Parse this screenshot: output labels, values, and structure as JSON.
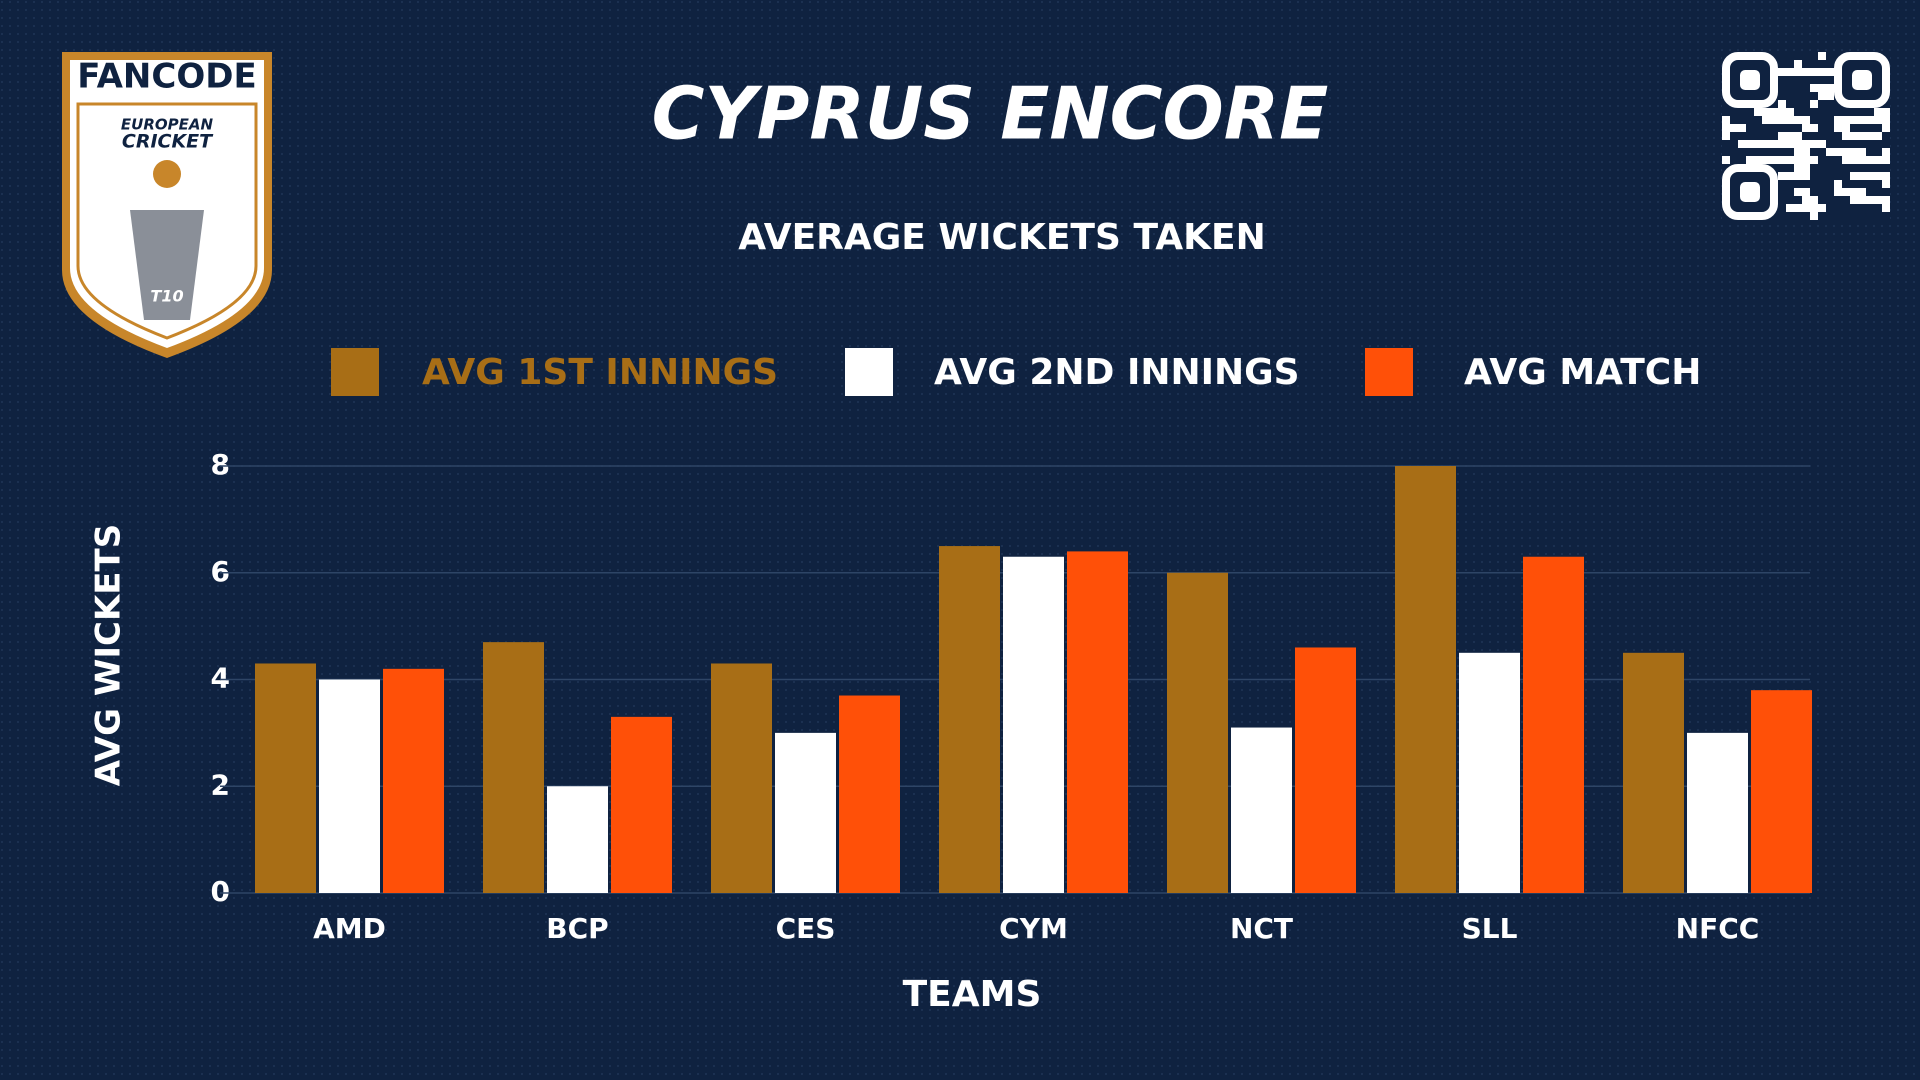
{
  "logo": {
    "brand": "FANCODE",
    "line1": "EUROPEAN",
    "line2": "CRICKET",
    "badge": "T10"
  },
  "chart_data": {
    "type": "bar",
    "title": "CYPRUS ENCORE",
    "subtitle": "AVERAGE WICKETS TAKEN",
    "x_label": "TEAMS",
    "y_label": "AVG WICKETS",
    "categories": [
      "AMD",
      "BCP",
      "CES",
      "CYM",
      "NCT",
      "SLL",
      "NFCC"
    ],
    "series": [
      {
        "name": "AVG 1ST INNINGS",
        "color": "#a86e16",
        "values": [
          4.3,
          4.7,
          4.3,
          6.5,
          6.0,
          8.0,
          4.5
        ]
      },
      {
        "name": "AVG 2ND INNINGS",
        "color": "#ffffff",
        "values": [
          4.0,
          2.0,
          3.0,
          6.3,
          3.1,
          4.5,
          3.0
        ]
      },
      {
        "name": "AVG MATCH",
        "color": "#ff5008",
        "values": [
          4.2,
          3.3,
          3.7,
          6.4,
          4.6,
          6.3,
          3.8
        ]
      }
    ],
    "ylim": [
      0,
      8
    ],
    "yticks": [
      0,
      2,
      4,
      6,
      8
    ],
    "grid": true
  }
}
